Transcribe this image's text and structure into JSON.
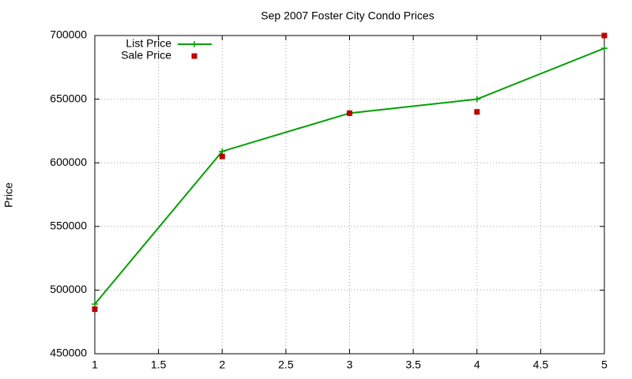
{
  "chart_data": {
    "type": "line",
    "title": "Sep 2007 Foster City Condo Prices",
    "y_label": "Price",
    "x": [
      1,
      2,
      3,
      4,
      5
    ],
    "series": [
      {
        "name": "List Price",
        "color": "#00a000",
        "style": "linespoints",
        "values": [
          489000,
          609000,
          639000,
          650000,
          690000
        ]
      },
      {
        "name": "Sale Price",
        "color": "#c00000",
        "style": "points",
        "values": [
          485000,
          605000,
          639000,
          640000,
          700000
        ]
      }
    ],
    "xlim": [
      1,
      5
    ],
    "xticks": [
      1,
      1.5,
      2,
      2.5,
      3,
      3.5,
      4,
      4.5,
      5
    ],
    "ylim": [
      450000,
      700000
    ],
    "yticks": [
      450000,
      500000,
      550000,
      600000,
      650000,
      700000
    ],
    "grid": true,
    "legend": "top-left"
  }
}
